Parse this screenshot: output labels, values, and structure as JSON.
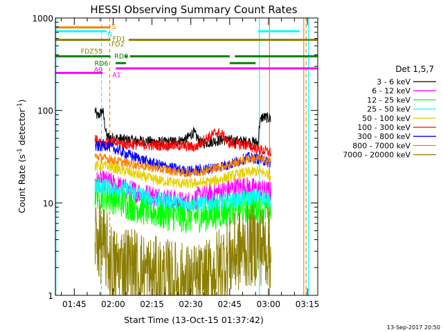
{
  "chart_data": {
    "type": "line",
    "title": "HESSI Observing Summary Count Rates",
    "xlabel": "Start Time (13-Oct-15 01:37:42)",
    "ylabel_main": "Count Rate (s",
    "ylabel_sup1": "-1",
    "ylabel_mid": " detector",
    "ylabel_sup2": "-1",
    "ylabel_end": ")",
    "ylog": true,
    "ylim": [
      1,
      1000
    ],
    "xlim_min": [
      97.7,
      199
    ],
    "x_ticks": [
      {
        "m": 105,
        "label": "01:45"
      },
      {
        "m": 120,
        "label": "02:00"
      },
      {
        "m": 135,
        "label": "02:15"
      },
      {
        "m": 150,
        "label": "02:30"
      },
      {
        "m": 165,
        "label": "02:45"
      },
      {
        "m": 180,
        "label": "03:00"
      },
      {
        "m": 195,
        "label": "03:15"
      }
    ],
    "y_ticks": [
      {
        "v": 1,
        "label": "1"
      },
      {
        "v": 10,
        "label": "10"
      },
      {
        "v": 100,
        "label": "100"
      },
      {
        "v": 1000,
        "label": "1000"
      }
    ],
    "legend_title": "Det 1,5,7",
    "legend_position": "right",
    "timestamp": "13-Sep-2017 20:50",
    "series": [
      {
        "name": "3 - 6 keV",
        "color": "#000000",
        "jitter": 0.06,
        "points": [
          [
            113,
            100
          ],
          [
            114,
            85
          ],
          [
            116,
            100
          ],
          [
            117.5,
            52
          ],
          [
            125,
            48
          ],
          [
            140,
            45
          ],
          [
            148,
            48
          ],
          [
            151,
            58
          ],
          [
            154,
            44
          ],
          [
            162,
            48
          ],
          [
            172,
            46
          ],
          [
            176,
            45
          ],
          [
            176.5,
            70
          ],
          [
            177.5,
            85
          ],
          [
            181,
            82
          ]
        ]
      },
      {
        "name": "6 - 12 keV",
        "color": "#ff00ff",
        "jitter": 0.12,
        "points": [
          [
            113,
            17
          ],
          [
            117.5,
            17
          ],
          [
            125,
            14
          ],
          [
            135,
            12
          ],
          [
            148,
            10
          ],
          [
            155,
            12
          ],
          [
            165,
            14
          ],
          [
            170,
            15
          ],
          [
            176,
            14
          ],
          [
            181,
            13
          ]
        ]
      },
      {
        "name": "12 - 25 keV",
        "color": "#00ff00",
        "jitter": 0.18,
        "points": [
          [
            113,
            13
          ],
          [
            117.5,
            12
          ],
          [
            125,
            10
          ],
          [
            135,
            8
          ],
          [
            148,
            7
          ],
          [
            158,
            7.5
          ],
          [
            170,
            9
          ],
          [
            176,
            9
          ],
          [
            181,
            8
          ]
        ]
      },
      {
        "name": "25 - 50 keV",
        "color": "#00ffff",
        "jitter": 0.09,
        "points": [
          [
            113,
            15
          ],
          [
            117.5,
            15
          ],
          [
            125,
            14
          ],
          [
            135,
            11
          ],
          [
            148,
            10
          ],
          [
            158,
            10
          ],
          [
            170,
            11
          ],
          [
            176,
            12
          ],
          [
            181,
            11
          ]
        ]
      },
      {
        "name": "50 - 100 keV",
        "color": "#e8d000",
        "jitter": 0.06,
        "points": [
          [
            113,
            25
          ],
          [
            117.5,
            25
          ],
          [
            125,
            22
          ],
          [
            135,
            18
          ],
          [
            148,
            16
          ],
          [
            158,
            17
          ],
          [
            170,
            21
          ],
          [
            176,
            22
          ],
          [
            181,
            20
          ]
        ]
      },
      {
        "name": "100 - 300 keV",
        "color": "#ff0000",
        "jitter": 0.06,
        "points": [
          [
            113,
            48
          ],
          [
            117.5,
            45
          ],
          [
            125,
            43
          ],
          [
            135,
            42
          ],
          [
            145,
            42
          ],
          [
            152,
            40
          ],
          [
            155,
            48
          ],
          [
            160,
            58
          ],
          [
            162,
            55
          ],
          [
            165,
            44
          ],
          [
            172,
            42
          ],
          [
            176,
            38
          ],
          [
            181,
            35
          ]
        ]
      },
      {
        "name": "300 - 800 keV",
        "color": "#0000ff",
        "jitter": 0.06,
        "points": [
          [
            113,
            40
          ],
          [
            117.5,
            42
          ],
          [
            125,
            34
          ],
          [
            135,
            27
          ],
          [
            148,
            22
          ],
          [
            155,
            23
          ],
          [
            165,
            26
          ],
          [
            172,
            31
          ],
          [
            176,
            30
          ],
          [
            181,
            27
          ]
        ]
      },
      {
        "name": "800 - 7000 keV",
        "color": "#ff8000",
        "jitter": 0.05,
        "points": [
          [
            113,
            32
          ],
          [
            117.5,
            30
          ],
          [
            125,
            27
          ],
          [
            135,
            24
          ],
          [
            148,
            21
          ],
          [
            155,
            22
          ],
          [
            165,
            26
          ],
          [
            172,
            30
          ],
          [
            176,
            30
          ],
          [
            181,
            28
          ]
        ]
      },
      {
        "name": "7000 - 20000 keV",
        "color": "#8b7d00",
        "jitter": 0.45,
        "points": [
          [
            113,
            4.5
          ],
          [
            117.5,
            3
          ],
          [
            120,
            2
          ],
          [
            125,
            2.2
          ],
          [
            135,
            1.6
          ],
          [
            145,
            1.4
          ],
          [
            150,
            1.3
          ],
          [
            156,
            1.4
          ],
          [
            162,
            2.2
          ],
          [
            170,
            3.2
          ],
          [
            176,
            3.6
          ],
          [
            181,
            3.2
          ]
        ]
      }
    ],
    "flag_lines": [
      {
        "name": "S",
        "color": "#ff8000",
        "level": 790,
        "segments": [
          [
            97.7,
            119
          ]
        ],
        "label_m": 119.5,
        "label_v": 810
      },
      {
        "name": "N",
        "color": "#00ffff",
        "level": 720,
        "segments": [
          [
            97.7,
            117.5
          ],
          [
            176,
            192
          ]
        ],
        "label_m": 117.8,
        "label_v": 670
      },
      {
        "name": "FD1",
        "color": "#8b7d00",
        "level": 660,
        "segments": [],
        "label_m": 119.8,
        "label_v": 600
      },
      {
        "name": "FD2",
        "color": "#8b7d00",
        "level": 580,
        "segments": [
          [
            97.7,
            119
          ],
          [
            126,
            176
          ],
          [
            176,
            199
          ]
        ],
        "label_m": 119.3,
        "label_v": 530
      },
      {
        "name": "FDZ55",
        "color": "#8b7d00",
        "level": 440,
        "segments": [],
        "label_m": 107.5,
        "label_v": 440
      },
      {
        "name": "RD0",
        "color": "#008000",
        "level": 385,
        "segments": [
          [
            97.7,
            119
          ],
          [
            124.5,
            125.5
          ],
          [
            126.5,
            165
          ],
          [
            167,
            199
          ]
        ],
        "label_m": 120.5,
        "label_v": 390
      },
      {
        "name": "RD6",
        "color": "#008000",
        "level": 325,
        "segments": [
          [
            121,
            125
          ],
          [
            165,
            175
          ]
        ],
        "label_m": 112.8,
        "label_v": 325
      },
      {
        "name": "A0",
        "color": "#ff00ff",
        "level": 255,
        "segments": [
          [
            97.7,
            116
          ]
        ],
        "label_m": 112.6,
        "label_v": 280
      },
      {
        "name": "A1",
        "color": "#ff00ff",
        "level": 285,
        "segments": [
          [
            121,
            199
          ]
        ],
        "label_m": 119.7,
        "label_v": 245
      }
    ],
    "vlines": [
      {
        "m": 97.9,
        "color": "#00ffff",
        "dash": false
      },
      {
        "m": 115.5,
        "color": "#00ffff",
        "dash": true
      },
      {
        "m": 118.7,
        "color": "#ff8000",
        "dash": true
      },
      {
        "m": 176.5,
        "color": "#00ffff",
        "dash": false
      },
      {
        "m": 180.4,
        "color": "#ff8000",
        "dash": false
      },
      {
        "m": 193.6,
        "color": "#ff8000",
        "dash": false
      },
      {
        "m": 194.5,
        "color": "#ff8000",
        "dash": true
      },
      {
        "m": 195.4,
        "color": "#00ffff",
        "dash": false
      }
    ]
  }
}
